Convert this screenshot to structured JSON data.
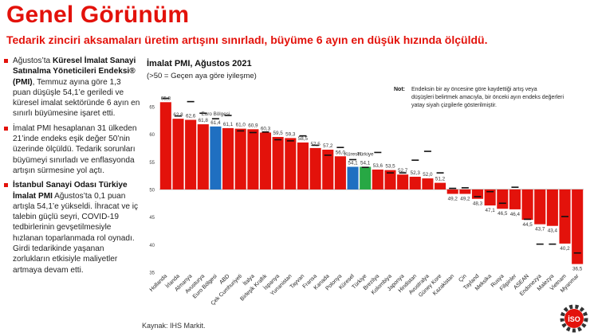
{
  "page": {
    "title": "Genel Görünüm",
    "subtitle": "Tedarik zinciri aksamaları üretim artışını sınırladı, büyüme 6 ayın en düşük hızında ölçüldü.",
    "source": "Kaynak: IHS Markit.",
    "logo_text": "İSO"
  },
  "bullets": [
    {
      "t1": "Ağustos’ta ",
      "b1": "Küresel İmalat Sanayi Satınalma Yöneticileri Endeksi® (PMI)",
      "t2": ", Temmuz ayına göre 1,3 puan düşüşle 54,1’e geriledi ve küresel imalat sektöründe 6 ayın en sınırlı büyümesine işaret etti."
    },
    {
      "t1": "İmalat PMI hesaplanan 31 ülkeden 21’inde endeks eşik değer 50’nin üzerinde ölçüldü. Tedarik sorunları büyümeyi sınırladı ve enflasyonda artışın sürmesine yol açtı."
    },
    {
      "b1": "İstanbul Sanayi Odası Türkiye İmalat PMI",
      "t2": " Ağustos’ta 0,1 puan artışla 54,1’e yükseldi. İhracat ve iç talebin güçlü seyri, COVID-19 tedbirlerinin gevşetilmesiyle hızlanan toparlanmada rol oynadı. Girdi tedarikinde yaşanan zorlukların etkisiyle maliyetler artmaya devam etti."
    }
  ],
  "chart_data": {
    "type": "bar",
    "title": "İmalat PMI, Ağustos 2021",
    "subtitle": "(>50 = Geçen aya göre iyileşme)",
    "note_label": "Not:",
    "note": "Endeksin bir ay öncesine göre kaydettiği artış veya düşüşleri belirtmek amacıyla, bir önceki ayın endeks değerleri yatay siyah çizgilerle gösterilmiştir.",
    "ylim": [
      35,
      67
    ],
    "yticks": [
      35,
      40,
      45,
      50,
      55,
      60,
      65
    ],
    "baseline": 50,
    "categories": [
      "Hollanda",
      "İrlanda",
      "Almanya",
      "Avusturya",
      "Euro Bölgesi",
      "ABD",
      "Çek Cumhuriyeti",
      "İtalya",
      "Birleşik Krallık",
      "İspanya",
      "Yunanistan",
      "Tayvan",
      "Fransa",
      "Kanada",
      "Polonya",
      "Küresel",
      "Türkiye",
      "Brezilya",
      "Kolombiya",
      "Japonya",
      "Hindistan",
      "Avustralya",
      "Güney Kore",
      "Kazakistan",
      "Çin",
      "Tayland",
      "Meksika",
      "Rusya",
      "Filipinler",
      "ASEAN",
      "Endonezya",
      "Malezya",
      "Vietnam",
      "Myanmar"
    ],
    "values": [
      65.8,
      62.8,
      62.6,
      61.8,
      61.4,
      61.1,
      61.0,
      60.9,
      60.3,
      59.5,
      59.3,
      58.5,
      57.5,
      57.2,
      56.0,
      54.1,
      54.1,
      53.6,
      53.5,
      52.7,
      52.3,
      52.0,
      51.2,
      49.2,
      49.2,
      48.3,
      47.1,
      46.5,
      46.4,
      44.5,
      43.7,
      43.4,
      40.2,
      36.5
    ],
    "value_labels": [
      "65,8",
      "62,8",
      "62,6",
      "61,8",
      "61,4",
      "61,1",
      "61,0",
      "60,9",
      "60,3",
      "59,5",
      "59,3",
      "58,5",
      "57,5",
      "57,2",
      "56,0",
      "54,1",
      "54,1",
      "53,6",
      "53,5",
      "52,7",
      "52,3",
      "52,0",
      "51,2",
      "49,2",
      "49,2",
      "48,3",
      "47,1",
      "46,5",
      "46,4",
      "44,5",
      "43,7",
      "43,4",
      "40,2",
      "36,5"
    ],
    "previous": [
      66.5,
      63.3,
      65.9,
      63.8,
      62.8,
      63.4,
      60.6,
      60.3,
      60.4,
      59.0,
      58.8,
      59.7,
      58.0,
      56.2,
      57.6,
      55.4,
      54.0,
      56.7,
      53.0,
      53.0,
      55.3,
      56.9,
      53.0,
      50.2,
      50.3,
      48.7,
      49.6,
      47.5,
      50.4,
      44.6,
      40.1,
      40.1,
      45.1,
      38.5
    ],
    "highlights": {
      "Euro Bölgesi": "Euro Bölgesi",
      "Küresel": "Küresel",
      "Türkiye": "Türkiye"
    },
    "colors": {
      "default": "#e3120b",
      "euro": "#1f6fc1",
      "global": "#1f6fc1",
      "turkey": "#27a844",
      "prev_marker": "#111111",
      "axis": "#888888"
    }
  }
}
